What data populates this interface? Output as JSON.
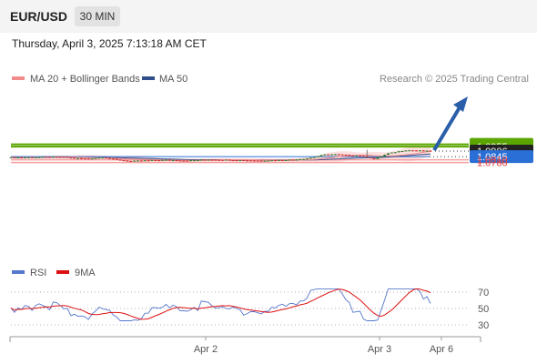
{
  "header": {
    "symbol": "EUR/USD",
    "timeframe": "30 MIN"
  },
  "datetime": "Thursday, April 3, 2025 7:13:18 AM CET",
  "legend": {
    "ma20_label": "MA 20 + Bollinger Bands",
    "ma50_label": "MA 50",
    "copyright": "Research © 2025 Trading Central"
  },
  "colors": {
    "ma20": "#f28c8c",
    "ma50": "#2e4f8a",
    "bollinger_fill": "#fde0e0",
    "resistance": "#5aa500",
    "support_blue": "#2a6fd6",
    "support_red": "#f4a0a0",
    "candle_up": "#2e7d32",
    "candle_down": "#c62828",
    "arrow": "#2a5ea8",
    "rsi": "#5577cc",
    "rsi_ma": "#dd1111"
  },
  "chart_data": [
    {
      "type": "line",
      "ylim": [
        1.073,
        1.1
      ],
      "x": [
        "Apr 2",
        "Apr 3",
        "Apr 6"
      ],
      "levels": [
        {
          "value": 1.098,
          "label": "1.0980",
          "kind": "resistance"
        },
        {
          "value": 1.0955,
          "label": "1.0955",
          "kind": "resistance"
        },
        {
          "value": 1.0906,
          "label": "1.0906",
          "kind": "last-price"
        },
        {
          "value": 1.0845,
          "label": "1.0845",
          "kind": "support-blue"
        },
        {
          "value": 1.081,
          "label": "1.0810",
          "kind": "support"
        },
        {
          "value": 1.078,
          "label": "1.0780",
          "kind": "support"
        }
      ],
      "series": [
        {
          "name": "MA 20 + Bollinger Bands"
        },
        {
          "name": "MA 50"
        }
      ]
    },
    {
      "type": "line",
      "ylim": [
        20,
        80
      ],
      "yticks": [
        70,
        50,
        30
      ],
      "series": [
        {
          "name": "RSI"
        },
        {
          "name": "9MA"
        }
      ]
    }
  ],
  "rsi_legend": {
    "rsi_label": "RSI",
    "ma_label": "9MA"
  }
}
